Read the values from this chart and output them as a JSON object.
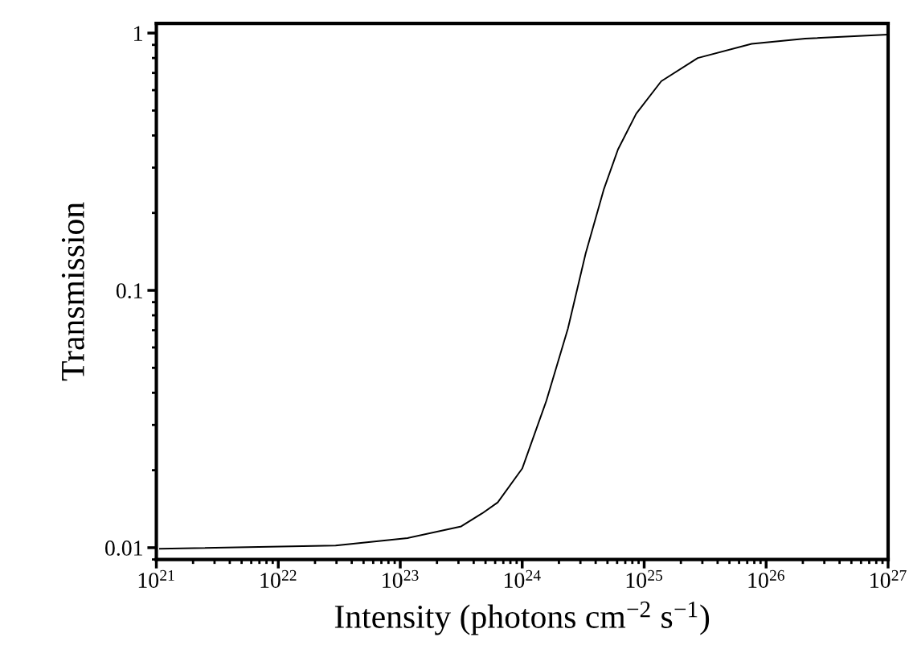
{
  "chart_data": {
    "type": "line",
    "xlabel": "Intensity (photons cm$^{−2}$ s$^{−1}$)",
    "ylabel": "Transmission",
    "log": "xy",
    "xlim": [
      1e+21,
      1e+27
    ],
    "ylim": [
      0.009,
      1.09
    ],
    "xticks": [
      {
        "value": 1e+21,
        "label": "10$^{21}$"
      },
      {
        "value": 1e+22,
        "label": "10$^{22}$"
      },
      {
        "value": 1e+23,
        "label": "10$^{23}$"
      },
      {
        "value": 1e+24,
        "label": "10$^{24}$"
      },
      {
        "value": 1e+25,
        "label": "10$^{25}$"
      },
      {
        "value": 1e+26,
        "label": "10$^{26}$"
      },
      {
        "value": 1e+27,
        "label": "10$^{27}$"
      }
    ],
    "yticks": [
      0.01,
      0.1,
      1
    ],
    "series": [
      {
        "color": "#000000",
        "x": [
          1.07e+21,
          2.95e+22,
          1.15e+23,
          3.16e+23,
          4.7e+23,
          6.3e+23,
          1e+24,
          1.58e+24,
          2.37e+24,
          3.31e+24,
          4.68e+24,
          6.1e+24,
          8.6e+24,
          1.38e+25,
          2.75e+25,
          7.6e+25,
          2.09e+26,
          9.8e+26
        ],
        "values": [
          0.0099,
          0.0102,
          0.0109,
          0.0121,
          0.0136,
          0.015,
          0.0203,
          0.0373,
          0.0711,
          0.139,
          0.248,
          0.353,
          0.486,
          0.65,
          0.8,
          0.908,
          0.952,
          0.986
        ]
      }
    ]
  }
}
